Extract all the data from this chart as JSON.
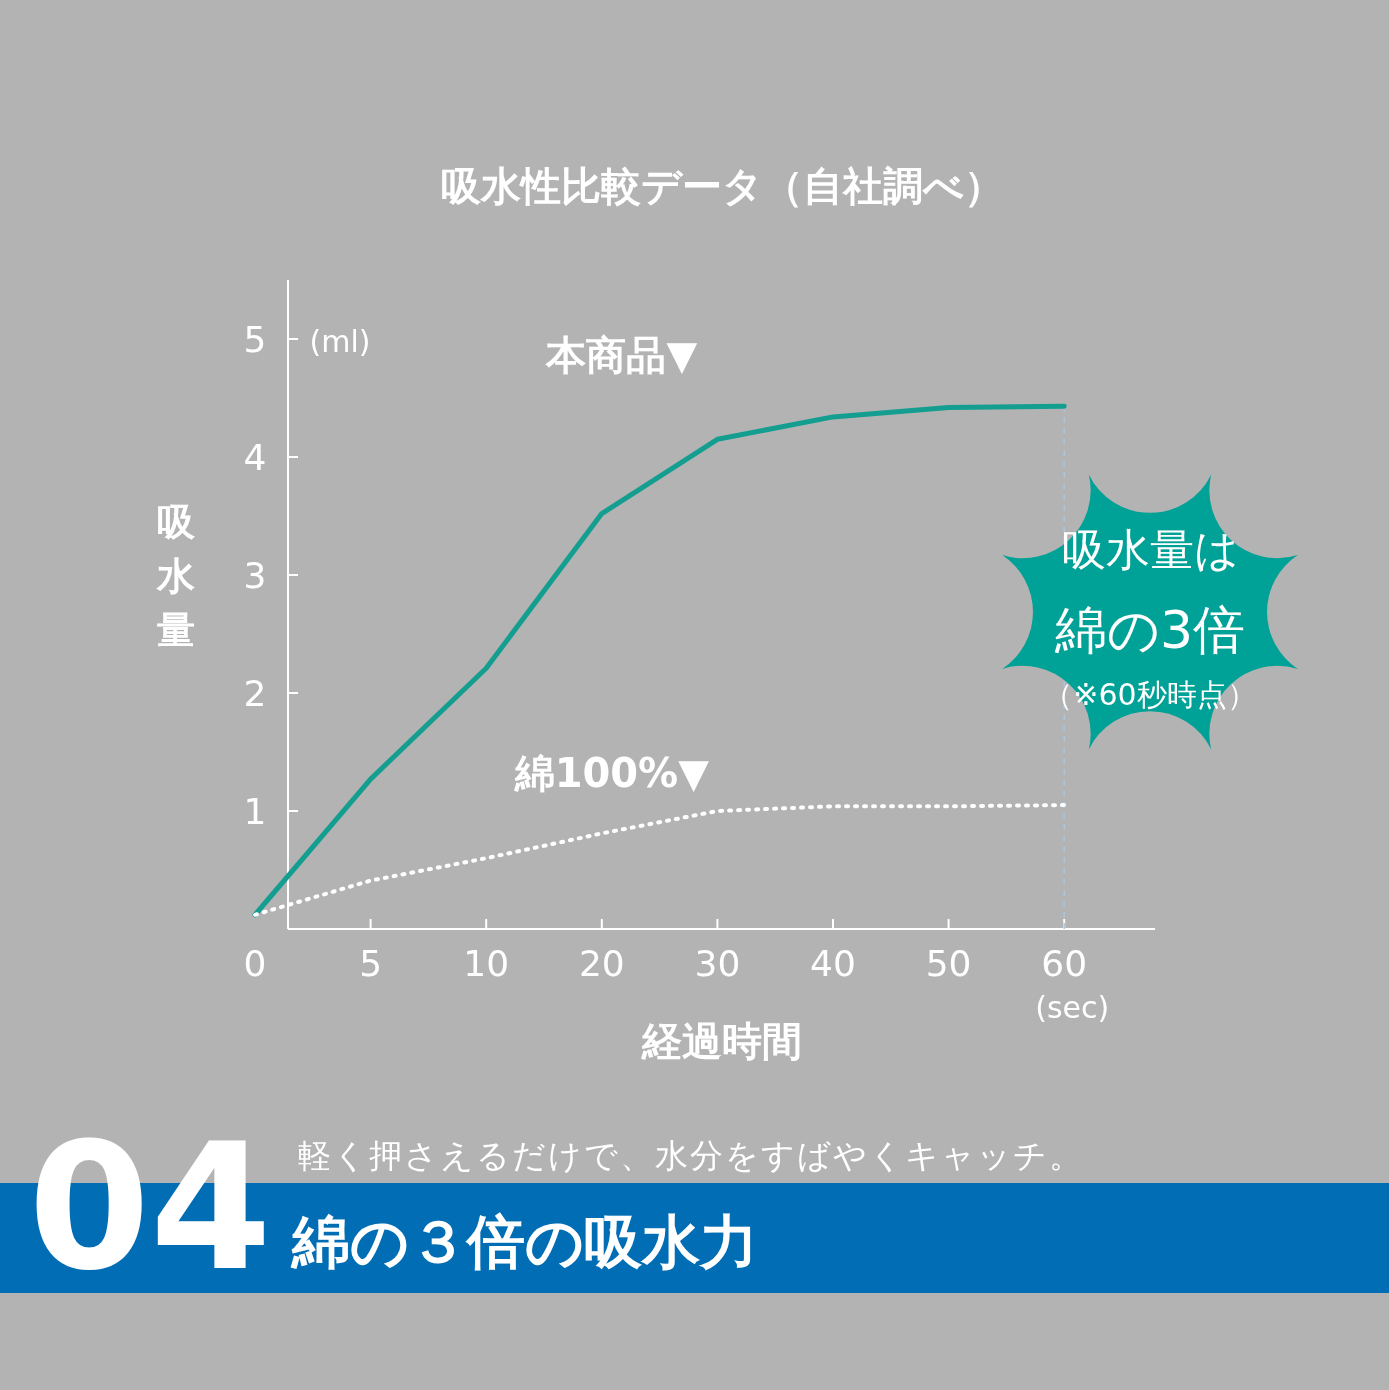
{
  "chart_data": {
    "type": "line",
    "title": "吸水性比較データ（自社調べ）",
    "xlabel": "経過時間",
    "ylabel": "吸水量",
    "categories": [
      "0",
      "5",
      "10",
      "20",
      "30",
      "40",
      "50",
      "60"
    ],
    "ylim": [
      0,
      5.5
    ],
    "yticks": [
      1,
      2,
      3,
      4,
      5
    ],
    "series": [
      {
        "name": "本商品▼",
        "color": "#139e90",
        "line_style": "solid",
        "values": [
          0.12,
          1.27,
          2.21,
          3.52,
          4.15,
          4.34,
          4.42,
          4.43
        ]
      },
      {
        "name": "綿100%▼",
        "color": "#ffffff",
        "line_style": "dotted",
        "values": [
          0.12,
          0.41,
          0.6,
          0.81,
          1.0,
          1.04,
          1.04,
          1.05
        ]
      }
    ],
    "ref_lines": [
      {
        "axis": "x",
        "value": "60",
        "color": "#a9c6dd",
        "line_style": "dashed"
      }
    ],
    "annotations": [
      "(ml)",
      "(sec)",
      "吸水量は",
      "綿の3倍",
      "（※60秒時点）",
      "04",
      "軽く押さえるだけで、水分をすばやくキャッチ。",
      "綿の３倍の吸水力"
    ],
    "grid": false,
    "legend": false,
    "marker": "none"
  }
}
